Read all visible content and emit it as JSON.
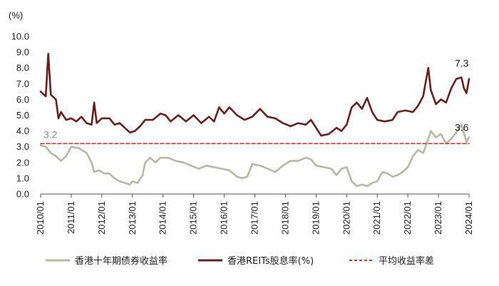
{
  "chart_data": {
    "type": "line",
    "ylabel": "(%)",
    "ylim": [
      0,
      10
    ],
    "y_ticks": [
      "0.0",
      "1.0",
      "2.0",
      "3.0",
      "4.0",
      "5.0",
      "6.0",
      "7.0",
      "8.0",
      "9.0",
      "10.0"
    ],
    "x_ticks": [
      "2010/01",
      "2011/01",
      "2012/01",
      "2013/01",
      "2014/01",
      "2015/01",
      "2016/01",
      "2017/01",
      "2018/01",
      "2019/01",
      "2020/01",
      "2021/01",
      "2022/01",
      "2023/01",
      "2024/01"
    ],
    "xlim": [
      "2010/01",
      "2024/01"
    ],
    "grid": false,
    "legend_position": "bottom",
    "series": [
      {
        "name": "香港十年期债券收益率",
        "color": "#b7b7a4",
        "points": [
          [
            "2010/01",
            3.1
          ],
          [
            "2010/03",
            3.0
          ],
          [
            "2010/05",
            2.6
          ],
          [
            "2010/07",
            2.4
          ],
          [
            "2010/09",
            2.1
          ],
          [
            "2010/11",
            2.4
          ],
          [
            "2011/01",
            3.0
          ],
          [
            "2011/04",
            2.9
          ],
          [
            "2011/07",
            2.6
          ],
          [
            "2011/09",
            2.0
          ],
          [
            "2011/10",
            1.4
          ],
          [
            "2011/12",
            1.5
          ],
          [
            "2012/02",
            1.3
          ],
          [
            "2012/04",
            1.3
          ],
          [
            "2012/06",
            1.0
          ],
          [
            "2012/08",
            0.8
          ],
          [
            "2012/10",
            0.7
          ],
          [
            "2012/12",
            0.6
          ],
          [
            "2013/01",
            0.8
          ],
          [
            "2013/03",
            0.7
          ],
          [
            "2013/05",
            1.2
          ],
          [
            "2013/06",
            2.0
          ],
          [
            "2013/08",
            2.3
          ],
          [
            "2013/10",
            2.0
          ],
          [
            "2013/12",
            2.3
          ],
          [
            "2014/03",
            2.3
          ],
          [
            "2014/06",
            2.1
          ],
          [
            "2014/09",
            2.0
          ],
          [
            "2014/12",
            1.8
          ],
          [
            "2015/03",
            1.6
          ],
          [
            "2015/06",
            1.8
          ],
          [
            "2015/09",
            1.7
          ],
          [
            "2015/12",
            1.6
          ],
          [
            "2016/03",
            1.5
          ],
          [
            "2016/06",
            1.1
          ],
          [
            "2016/08",
            1.0
          ],
          [
            "2016/10",
            1.1
          ],
          [
            "2016/12",
            1.9
          ],
          [
            "2017/03",
            1.8
          ],
          [
            "2017/06",
            1.6
          ],
          [
            "2017/09",
            1.4
          ],
          [
            "2017/12",
            1.8
          ],
          [
            "2018/03",
            2.1
          ],
          [
            "2018/06",
            2.1
          ],
          [
            "2018/09",
            2.3
          ],
          [
            "2018/11",
            2.2
          ],
          [
            "2019/01",
            1.8
          ],
          [
            "2019/04",
            1.7
          ],
          [
            "2019/07",
            1.6
          ],
          [
            "2019/09",
            1.2
          ],
          [
            "2019/11",
            1.6
          ],
          [
            "2020/01",
            1.7
          ],
          [
            "2020/03",
            0.8
          ],
          [
            "2020/05",
            0.5
          ],
          [
            "2020/07",
            0.6
          ],
          [
            "2020/09",
            0.5
          ],
          [
            "2020/11",
            0.7
          ],
          [
            "2021/01",
            0.8
          ],
          [
            "2021/03",
            1.4
          ],
          [
            "2021/05",
            1.3
          ],
          [
            "2021/07",
            1.1
          ],
          [
            "2021/09",
            1.2
          ],
          [
            "2021/11",
            1.4
          ],
          [
            "2022/01",
            1.7
          ],
          [
            "2022/03",
            2.4
          ],
          [
            "2022/05",
            2.8
          ],
          [
            "2022/07",
            2.6
          ],
          [
            "2022/09",
            3.5
          ],
          [
            "2022/10",
            4.0
          ],
          [
            "2022/12",
            3.6
          ],
          [
            "2023/02",
            3.8
          ],
          [
            "2023/04",
            3.2
          ],
          [
            "2023/06",
            3.5
          ],
          [
            "2023/08",
            3.9
          ],
          [
            "2023/10",
            4.4
          ],
          [
            "2023/12",
            3.3
          ],
          [
            "2024/01",
            3.6
          ]
        ]
      },
      {
        "name": "香港REITs股息率(%)",
        "color": "#6b1f1c",
        "points": [
          [
            "2010/01",
            6.5
          ],
          [
            "2010/03",
            6.2
          ],
          [
            "2010/04",
            8.9
          ],
          [
            "2010/05",
            6.3
          ],
          [
            "2010/07",
            6.0
          ],
          [
            "2010/08",
            4.8
          ],
          [
            "2010/09",
            5.2
          ],
          [
            "2010/11",
            4.7
          ],
          [
            "2011/01",
            4.8
          ],
          [
            "2011/03",
            4.6
          ],
          [
            "2011/05",
            4.9
          ],
          [
            "2011/07",
            4.5
          ],
          [
            "2011/09",
            4.4
          ],
          [
            "2011/10",
            5.8
          ],
          [
            "2011/11",
            4.5
          ],
          [
            "2012/01",
            4.8
          ],
          [
            "2012/04",
            4.8
          ],
          [
            "2012/06",
            4.4
          ],
          [
            "2012/08",
            4.5
          ],
          [
            "2012/10",
            4.2
          ],
          [
            "2012/12",
            3.9
          ],
          [
            "2013/02",
            4.0
          ],
          [
            "2013/04",
            4.3
          ],
          [
            "2013/06",
            4.7
          ],
          [
            "2013/09",
            4.7
          ],
          [
            "2013/12",
            5.1
          ],
          [
            "2014/02",
            5.0
          ],
          [
            "2014/04",
            4.6
          ],
          [
            "2014/07",
            5.0
          ],
          [
            "2014/10",
            4.6
          ],
          [
            "2015/01",
            5.0
          ],
          [
            "2015/04",
            4.5
          ],
          [
            "2015/07",
            4.9
          ],
          [
            "2015/09",
            4.6
          ],
          [
            "2015/11",
            5.5
          ],
          [
            "2016/01",
            5.1
          ],
          [
            "2016/03",
            5.5
          ],
          [
            "2016/06",
            5.0
          ],
          [
            "2016/09",
            4.7
          ],
          [
            "2016/12",
            4.9
          ],
          [
            "2017/03",
            5.4
          ],
          [
            "2017/06",
            4.9
          ],
          [
            "2017/09",
            4.8
          ],
          [
            "2017/12",
            4.5
          ],
          [
            "2018/03",
            4.3
          ],
          [
            "2018/06",
            4.5
          ],
          [
            "2018/09",
            4.4
          ],
          [
            "2018/11",
            4.7
          ],
          [
            "2019/01",
            4.2
          ],
          [
            "2019/03",
            3.7
          ],
          [
            "2019/06",
            3.8
          ],
          [
            "2019/09",
            4.2
          ],
          [
            "2019/11",
            4.0
          ],
          [
            "2020/01",
            4.4
          ],
          [
            "2020/03",
            5.5
          ],
          [
            "2020/05",
            5.8
          ],
          [
            "2020/07",
            5.4
          ],
          [
            "2020/09",
            6.1
          ],
          [
            "2020/11",
            5.2
          ],
          [
            "2021/01",
            4.7
          ],
          [
            "2021/04",
            4.6
          ],
          [
            "2021/07",
            4.7
          ],
          [
            "2021/09",
            5.2
          ],
          [
            "2021/12",
            5.3
          ],
          [
            "2022/03",
            5.2
          ],
          [
            "2022/05",
            5.6
          ],
          [
            "2022/07",
            6.2
          ],
          [
            "2022/09",
            8.0
          ],
          [
            "2022/10",
            6.6
          ],
          [
            "2022/12",
            5.7
          ],
          [
            "2023/02",
            6.0
          ],
          [
            "2023/04",
            5.8
          ],
          [
            "2023/06",
            6.7
          ],
          [
            "2023/08",
            7.3
          ],
          [
            "2023/10",
            7.4
          ],
          [
            "2023/11",
            6.7
          ],
          [
            "2023/12",
            6.4
          ],
          [
            "2024/01",
            7.3
          ]
        ]
      },
      {
        "name": "平均收益率差",
        "color": "#c0392b",
        "style": "dashed",
        "points": [
          [
            "2010/01",
            3.2
          ],
          [
            "2024/01",
            3.2
          ]
        ]
      }
    ],
    "annotations": [
      {
        "text": "3.2",
        "x": "2010/01",
        "y": 3.2,
        "color": "#8a8a8a"
      },
      {
        "text": "7.3",
        "x": "2024/01",
        "y": 7.3,
        "color": "#222222"
      },
      {
        "text": "3.6",
        "x": "2024/01",
        "y": 3.6,
        "color": "#222222"
      }
    ]
  }
}
